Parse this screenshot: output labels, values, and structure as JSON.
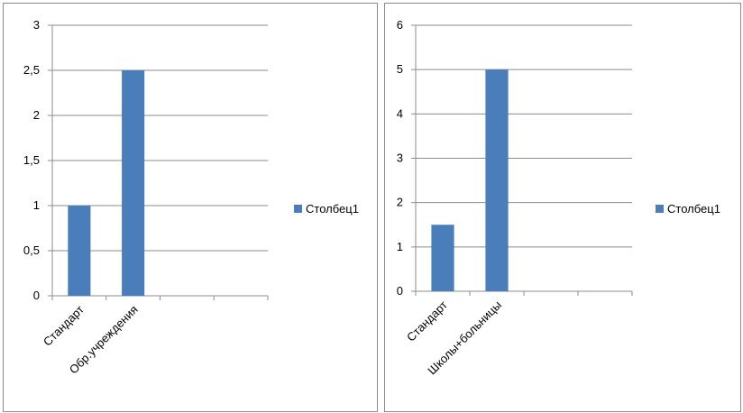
{
  "chart_data": [
    {
      "type": "bar",
      "title": "",
      "xlabel": "",
      "ylabel": "",
      "categories": [
        "Стандарт",
        "Обр.учреждения",
        "",
        ""
      ],
      "series": [
        {
          "name": "Столбец1",
          "values": [
            1,
            2.5,
            null,
            null
          ]
        }
      ],
      "y_ticks": [
        "0",
        "0,5",
        "1",
        "1,5",
        "2",
        "2,5",
        "3"
      ],
      "ylim": [
        0,
        3
      ],
      "grid": true,
      "legend_position": "right",
      "bar_color": "#4a7ebb"
    },
    {
      "type": "bar",
      "title": "",
      "xlabel": "",
      "ylabel": "",
      "categories": [
        "Стандарт",
        "Школы+больницы",
        "",
        ""
      ],
      "series": [
        {
          "name": "Столбец1",
          "values": [
            1.5,
            5,
            null,
            null
          ]
        }
      ],
      "y_ticks": [
        "0",
        "1",
        "2",
        "3",
        "4",
        "5",
        "6"
      ],
      "ylim": [
        0,
        6
      ],
      "grid": true,
      "legend_position": "right",
      "bar_color": "#4a7ebb"
    }
  ]
}
